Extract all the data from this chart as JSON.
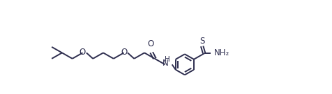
{
  "bg_color": "#ffffff",
  "line_color": "#2d2d4e",
  "line_width": 1.4,
  "font_size": 8.5,
  "figsize": [
    4.76,
    1.36
  ],
  "dpi": 100,
  "xlim": [
    0,
    4.76
  ],
  "ylim": [
    0,
    1.36
  ]
}
